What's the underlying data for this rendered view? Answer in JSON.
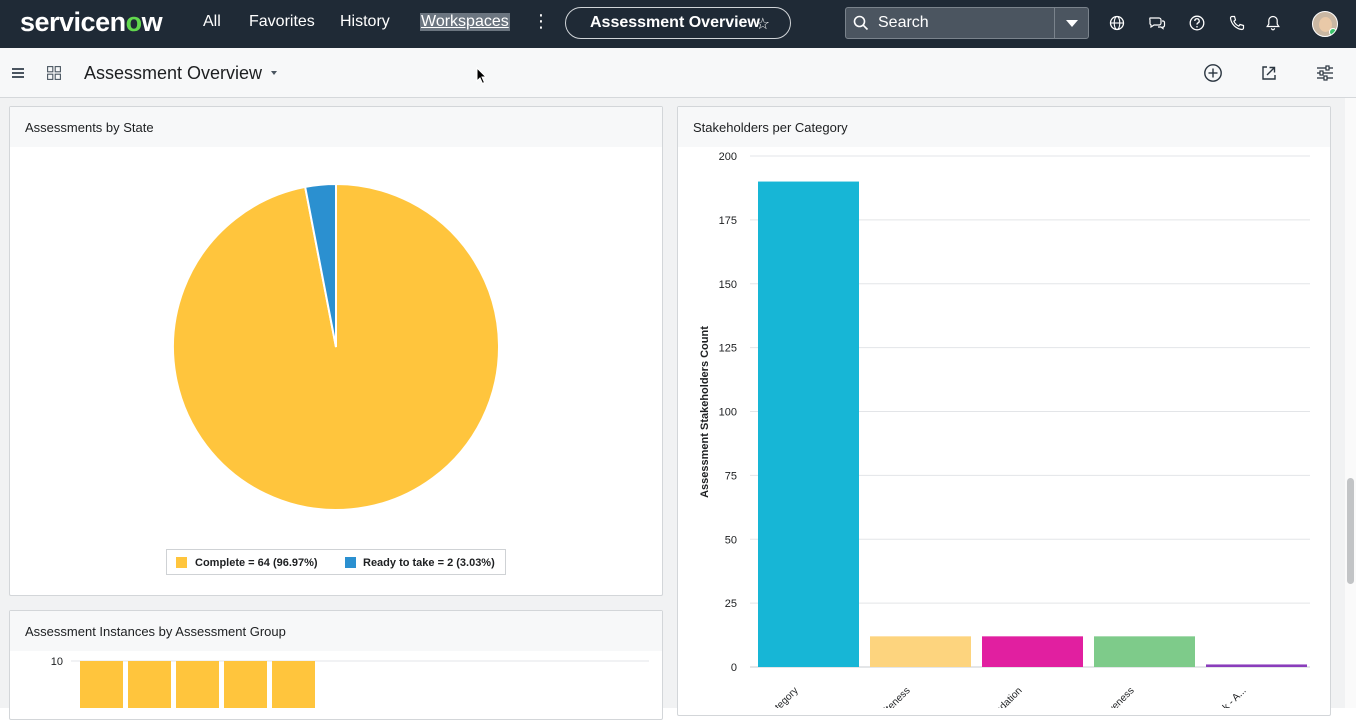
{
  "topnav": {
    "logo_main": "servicen",
    "logo_o": "o",
    "logo_end": "w",
    "links": [
      "All",
      "Favorites",
      "History",
      "Workspaces"
    ],
    "pill_title": "Assessment Overview",
    "search_placeholder": "Search"
  },
  "header": {
    "title": "Assessment Overview"
  },
  "cards": {
    "pie_title": "Assessments by State",
    "bar_title": "Stakeholders per Category",
    "group_title": "Assessment Instances by Assessment Group"
  },
  "colors": {
    "nav_bg": "#1f2a36",
    "complete": "#ffc53d",
    "ready": "#2b90d0",
    "bar1": "#17b6d6",
    "bar2": "#fdd47e",
    "bar3": "#e11fa0",
    "bar4": "#7ecb8a",
    "bar5": "#8a3dbb"
  },
  "chart_data": [
    {
      "type": "pie",
      "title": "Assessments by State",
      "categories": [
        "Complete",
        "Ready to take"
      ],
      "values": [
        64,
        2
      ],
      "legend": [
        "Complete = 64 (96.97%)",
        "Ready to take = 2 (3.03%)"
      ],
      "legend_position": "bottom"
    },
    {
      "type": "bar",
      "title": "Stakeholders per Category",
      "ylabel": "Assessment Stakeholders Count",
      "ylim": [
        0,
        200
      ],
      "yticks": [
        0,
        25,
        50,
        75,
        100,
        125,
        150,
        175,
        200
      ],
      "categories": [
        "...category",
        "...liteness",
        "...ndation",
        "...siveness",
        "...Bank - A..."
      ],
      "values": [
        190,
        12,
        12,
        12,
        1
      ],
      "grid": true
    },
    {
      "type": "bar",
      "title": "Assessment Instances by Assessment Group",
      "ylim": [
        0,
        10
      ],
      "yticks": [
        10
      ],
      "values": [
        10,
        10,
        10,
        10,
        10
      ],
      "grid": true
    }
  ]
}
